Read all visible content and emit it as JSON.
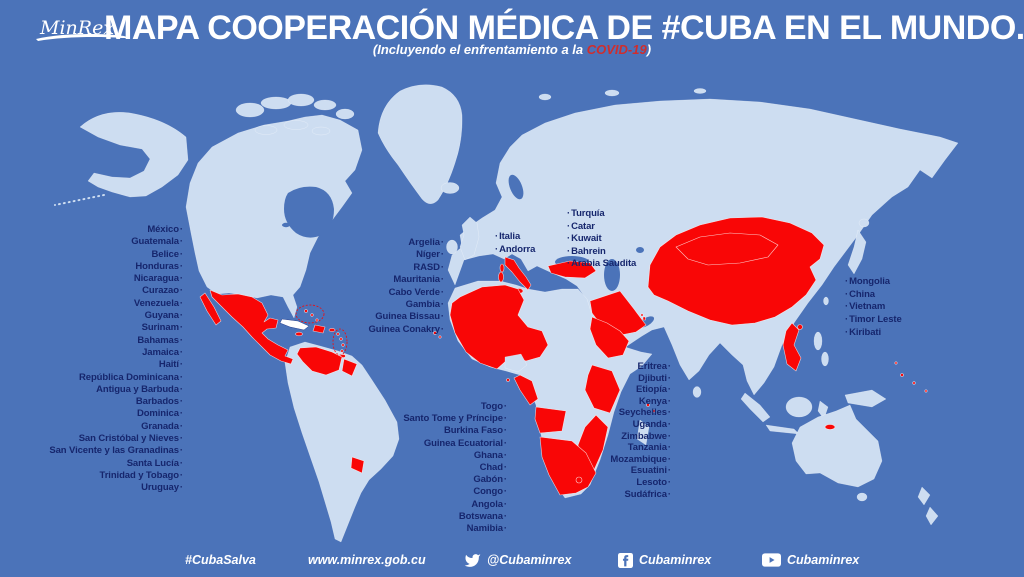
{
  "colors": {
    "sea": "#4b73b9",
    "land": "#cdddf1",
    "highlight_red": "#f90606",
    "list_text_navy": "#16266d",
    "title_white": "#ffffff",
    "covid_red": "#cf2e2e"
  },
  "header": {
    "logo": "MinRex",
    "title": "MAPA COOPERACIÓN MÉDICA DE #CUBA EN EL MUNDO.",
    "subtitle_prefix": "(Incluyendo el enfrentamiento a la ",
    "subtitle_covid": "COVID-19",
    "subtitle_suffix": ")"
  },
  "country_lists": {
    "americas": {
      "bullet": "·",
      "side": "after",
      "items": [
        "México",
        "Guatemala",
        "Belice",
        "Honduras",
        "Nicaragua",
        "Curazao",
        "Venezuela",
        "Guyana",
        "Surinam",
        "Bahamas",
        "Jamaica",
        "Haití",
        "República Dominicana",
        "Antigua y Barbuda",
        "Barbados",
        "Dominica",
        "Granada",
        "San Cristóbal y Nieves",
        "San Vicente y las Granadinas",
        "Santa Lucía",
        "Trinidad y Tobago",
        "Uruguay"
      ]
    },
    "northwest_africa": {
      "bullet": "·",
      "side": "after",
      "items": [
        "Argelia",
        "Níger",
        "RASD",
        "Mauritania",
        "Cabo Verde",
        "Gambia",
        "Guinea Bissau",
        "Guinea Conakry"
      ]
    },
    "southern_europe": {
      "bullet": "·",
      "side": "before",
      "items": [
        "Italia",
        "Andorra"
      ]
    },
    "middle_east": {
      "bullet": "·",
      "side": "before",
      "items": [
        "Turquía",
        "Catar",
        "Kuwait",
        "Bahrein",
        "Arabia Saudita"
      ]
    },
    "asia_pacific": {
      "bullet": "·",
      "side": "before",
      "items": [
        "Mongolia",
        "China",
        "Vietnam",
        "Timor Leste",
        "Kiribati"
      ]
    },
    "west_central_africa": {
      "bullet": "·",
      "side": "after",
      "items": [
        "Togo",
        "Santo Tome y Príncipe",
        "Burkina Faso",
        "Guinea Ecuatorial",
        "Ghana",
        "Chad",
        "Gabón",
        "Congo",
        "Angola",
        "Botswana",
        "Namibia"
      ]
    },
    "east_southern_africa": {
      "bullet": "·",
      "side": "after",
      "items": [
        "Eritrea",
        "Djibuti",
        "Etiopía",
        "Kenya",
        "Seychelles",
        "Uganda",
        "Zimbabwe",
        "Tanzania",
        "Mozambique",
        "Esuatini",
        "Lesoto",
        "Sudáfrica"
      ]
    }
  },
  "footer": {
    "hashtag": "#CubaSalva",
    "website": "www.minrex.gob.cu",
    "twitter": "@Cubaminrex",
    "facebook": "Cubaminrex",
    "youtube": "Cubaminrex"
  }
}
